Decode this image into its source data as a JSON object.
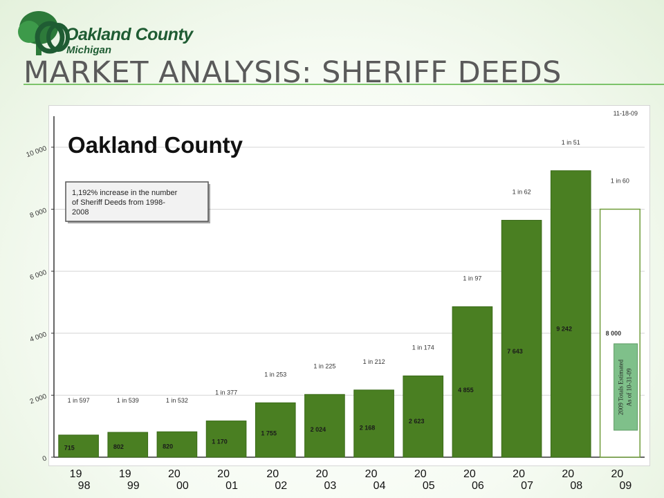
{
  "logo": {
    "name": "Oakland County",
    "subtitle": "Michigan",
    "brand_color": "#1f5c33",
    "icon": "oakland-county-oak-tree-logo"
  },
  "slide_title": "MARKET ANALYSIS: SHERIFF DEEDS",
  "chart_data": {
    "type": "bar",
    "title": "Oakland County",
    "date_note": "11-18-09",
    "callout": "1,192% increase in the number of Sheriff Deeds from 1998-2008",
    "estimate_note": [
      "2009 Totals Estimated",
      "As of 10-31-09"
    ],
    "xlabel": "",
    "ylabel": "",
    "ylim": [
      0,
      11000
    ],
    "yticks": [
      0,
      2000,
      4000,
      6000,
      8000,
      10000
    ],
    "ytick_labels": [
      "0",
      "2 000",
      "4 000",
      "6 000",
      "8 000",
      "10 000"
    ],
    "grid": true,
    "categories": [
      "1998",
      "1999",
      "2000",
      "2001",
      "2002",
      "2003",
      "2004",
      "2005",
      "2006",
      "2007",
      "2008",
      "2009"
    ],
    "category_label_lines": [
      [
        "19",
        "98"
      ],
      [
        "19",
        "99"
      ],
      [
        "20",
        "00"
      ],
      [
        "20",
        "01"
      ],
      [
        "20",
        "02"
      ],
      [
        "20",
        "03"
      ],
      [
        "20",
        "04"
      ],
      [
        "20",
        "05"
      ],
      [
        "20",
        "06"
      ],
      [
        "20",
        "07"
      ],
      [
        "20",
        "08"
      ],
      [
        "20",
        "09"
      ]
    ],
    "values": [
      715,
      802,
      820,
      1170,
      1755,
      2024,
      2168,
      2623,
      4855,
      7643,
      9242,
      8000
    ],
    "value_labels": [
      "715",
      "802",
      "820",
      "1 170",
      "1 755",
      "2 024",
      "2 168",
      "2 623",
      "4 855",
      "7 643",
      "9 242",
      "8 000"
    ],
    "ratio_labels": [
      "1 in 597",
      "1 in 539",
      "1 in 532",
      "1 in 377",
      "1 in 253",
      "1 in 225",
      "1 in 212",
      "1 in 174",
      "1 in 97",
      "1 in 62",
      "1 in 51",
      "1 in 60"
    ],
    "estimated_index": 11,
    "colors": {
      "bar": "#4a7f22",
      "bar_edge": "#3a6a18",
      "estimated_bar": "#ffffff",
      "estimated_edge": "#6f9c3a",
      "estimate_box": "#7fc08a"
    }
  }
}
